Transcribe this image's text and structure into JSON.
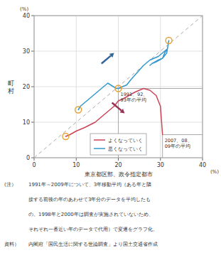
{
  "chart_data": {
    "type": "line",
    "xlabel": "東京都区部、政令指定都市",
    "ylabel": "町\n村",
    "x_unit": "(%)",
    "y_unit": "(%)",
    "xlim": [
      0,
      40
    ],
    "ylim": [
      0,
      40
    ],
    "xticks": [
      0,
      10,
      20,
      30,
      40
    ],
    "yticks": [
      0,
      10,
      20,
      30,
      40
    ],
    "grid": true,
    "legend": "lower center",
    "series": [
      {
        "name": "悪くなっていく",
        "color": "#3399cc",
        "x": [
          10.5,
          11.0,
          12.0,
          13.5,
          15.5,
          17.5,
          19.5,
          20.0,
          21.0,
          22.0,
          23.0,
          24.5,
          26.0,
          27.0,
          27.5,
          28.5,
          29.5,
          30.5,
          31.5,
          31.0,
          30.5,
          29.5,
          28.0,
          27.5,
          28.0,
          29.0,
          30.5,
          31.5,
          32.0
        ],
        "values": [
          13.5,
          14.5,
          15.5,
          17.0,
          19.0,
          21.0,
          19.5,
          19.5,
          20.0,
          20.5,
          22.0,
          24.0,
          26.0,
          27.0,
          27.5,
          28.0,
          28.5,
          29.5,
          30.5,
          29.5,
          28.0,
          27.5,
          26.5,
          26.0,
          26.5,
          27.0,
          28.0,
          29.5,
          33.0
        ]
      },
      {
        "name": "よくなっていく",
        "color": "#cc4455",
        "x": [
          7.5,
          8.5,
          10.0,
          12.0,
          14.5,
          17.0,
          19.0,
          20.0,
          21.0,
          22.5,
          24.0,
          26.0,
          27.5,
          29.0,
          30.0,
          30.5
        ],
        "values": [
          6.0,
          6.5,
          7.5,
          8.5,
          10.0,
          12.5,
          14.5,
          16.0,
          16.5,
          17.5,
          18.5,
          19.5,
          19.0,
          17.5,
          14.5,
          6.5
        ]
      },
      {
        "type": "scatter",
        "marker": "circle",
        "color": "#e8a030",
        "x": [
          10.5,
          20.0,
          32.0,
          7.5
        ],
        "values": [
          13.5,
          19.5,
          33.0,
          6.0
        ]
      }
    ],
    "reference_line": {
      "x": [
        0,
        40
      ],
      "y": [
        0,
        40
      ],
      "color": "#aaaaaa",
      "line_style": "dashed"
    },
    "arrows": [
      {
        "x": [
          16.0,
          19.0
        ],
        "y": [
          26.5,
          29.5
        ],
        "color": "#336699"
      },
      {
        "x": [
          18.5,
          21.5
        ],
        "y": [
          15.5,
          12.5
        ],
        "color": "#993355"
      }
    ],
    "annotations": [
      {
        "text": "1991、92、\n93年の平均",
        "x": 20.0,
        "y": 19.5
      },
      {
        "text": "2007、08、\n09年の平均",
        "x": 30.5,
        "y": 6.5
      }
    ],
    "notes": [
      {
        "label": "(注）",
        "text": "1991年～2009年について、3年移動平均（ある年と隣"
      },
      {
        "text": "接する前後の年のあわせて3年分のデータを平均したも"
      },
      {
        "text": "の。1998年と2000年は調査が実施されていないため、"
      },
      {
        "text": "それぞれ一番近い年のデータで代用）で変遷をグラフ化。"
      },
      {
        "label": "資料）",
        "text": "内閣府「国民生活に関する世論調査」より国土交通省作成"
      }
    ]
  }
}
